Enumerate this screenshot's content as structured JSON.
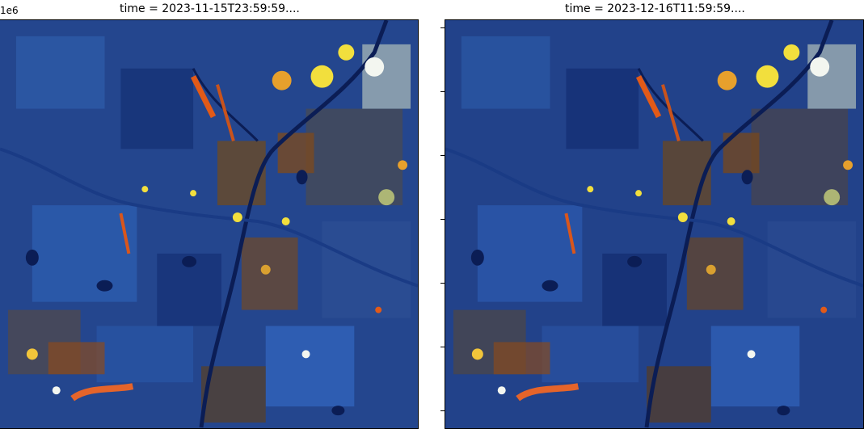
{
  "figure": {
    "scale_label": "1e6",
    "panels": [
      {
        "title": "time = 2023-11-15T23:59:59...."
      },
      {
        "title": "time = 2023-12-16T11:59:59...."
      }
    ]
  },
  "colors": {
    "base_blue": "#1f3f86",
    "light_blue": "#4d86d8",
    "dark_navy": "#0b1d55",
    "brown": "#6a4a25",
    "orange": "#d9561c",
    "yellow": "#f2df3d",
    "white": "#f3f6f0"
  }
}
